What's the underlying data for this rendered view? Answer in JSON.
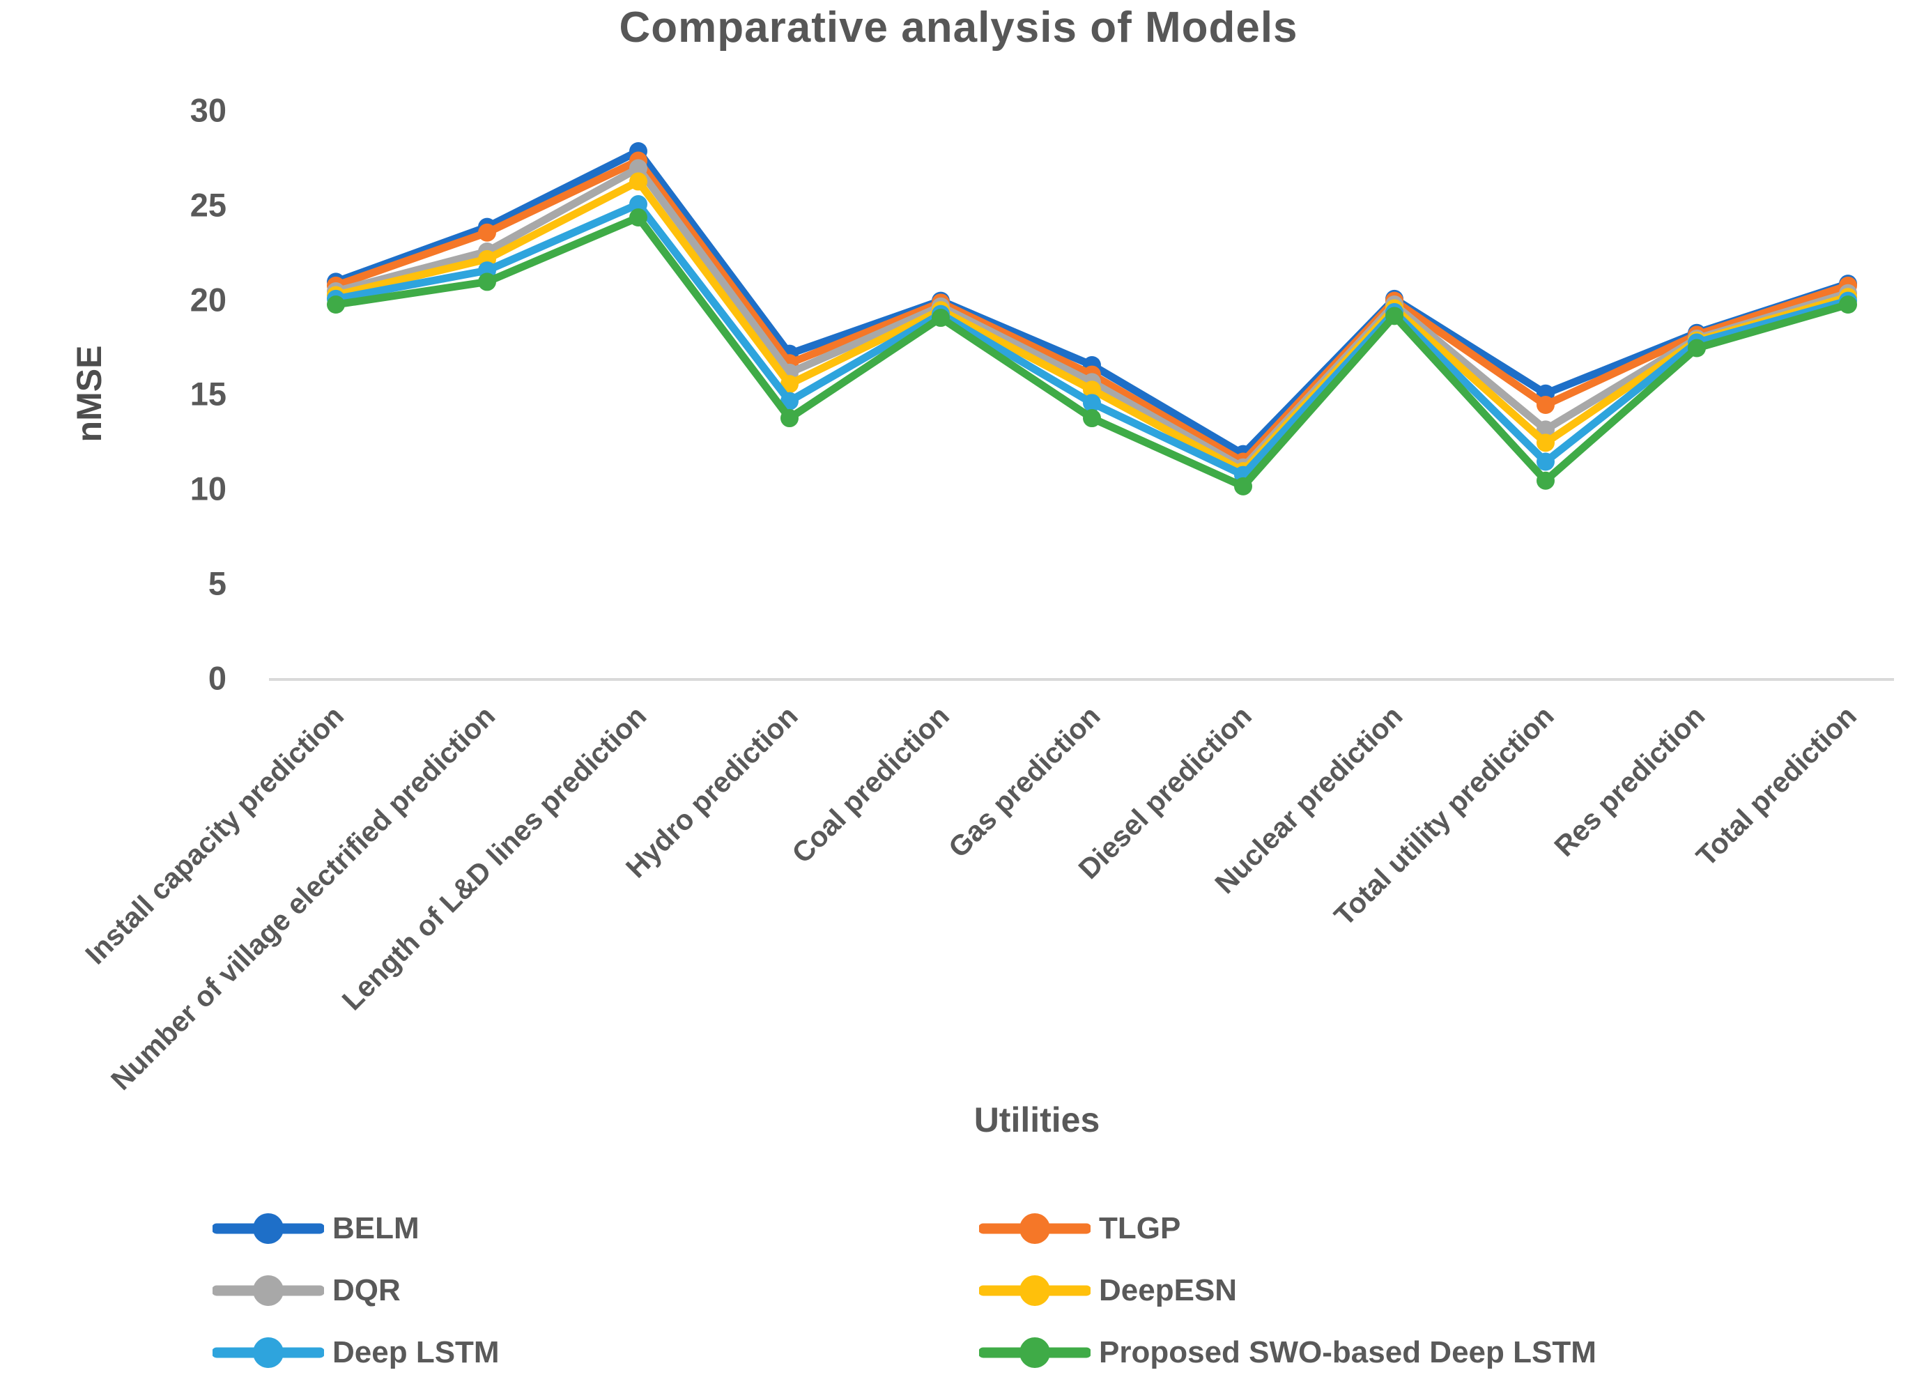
{
  "chart_data": {
    "type": "line",
    "title": "Comparative analysis of Models",
    "xlabel": "Utilities",
    "ylabel": "nMSE",
    "ylim": [
      0,
      30
    ],
    "y_ticks": [
      0,
      5,
      10,
      15,
      20,
      25,
      30
    ],
    "grid": false,
    "marker": "circle",
    "legend_position": "bottom-two-columns",
    "categories": [
      "Install capacity prediction",
      "Number of village electrified prediction",
      "Length of L&D lines prediction",
      "Hydro prediction",
      "Coal prediction",
      "Gas prediction",
      "Diesel prediction",
      "Nuclear prediction",
      "Total utility prediction",
      "Res prediction",
      "Total prediction"
    ],
    "series": [
      {
        "name": "BELM",
        "color": "#1E6FC8",
        "values": [
          21.0,
          23.9,
          27.9,
          17.2,
          20.0,
          16.6,
          11.9,
          20.1,
          15.1,
          18.3,
          20.9
        ]
      },
      {
        "name": "TLGP",
        "color": "#F57728",
        "values": [
          20.8,
          23.6,
          27.4,
          16.7,
          19.9,
          16.1,
          11.5,
          20.0,
          14.5,
          18.2,
          20.8
        ]
      },
      {
        "name": "DQR",
        "color": "#A8A8A8",
        "values": [
          20.5,
          22.6,
          27.0,
          16.2,
          19.7,
          15.7,
          11.2,
          19.8,
          13.2,
          18.0,
          20.4
        ]
      },
      {
        "name": "DeepESN",
        "color": "#FFC00B",
        "values": [
          20.3,
          22.2,
          26.3,
          15.6,
          19.5,
          15.3,
          11.0,
          19.6,
          12.5,
          17.9,
          20.2
        ]
      },
      {
        "name": "Deep LSTM",
        "color": "#2EA4DD",
        "values": [
          20.1,
          21.6,
          25.1,
          14.7,
          19.3,
          14.6,
          10.8,
          19.4,
          11.5,
          17.8,
          20.0
        ]
      },
      {
        "name": "Proposed SWO-based Deep LSTM",
        "color": "#3FAB47",
        "values": [
          19.8,
          21.0,
          24.4,
          13.8,
          19.1,
          13.8,
          10.2,
          19.2,
          10.5,
          17.5,
          19.8
        ]
      }
    ]
  },
  "legend": {
    "left_column": [
      "BELM",
      "DQR",
      "Deep LSTM"
    ],
    "right_column": [
      "TLGP",
      "DeepESN",
      "Proposed SWO-based Deep LSTM"
    ]
  },
  "axis_colors": {
    "baseline": "#D9D9D9",
    "text": "#595959"
  }
}
